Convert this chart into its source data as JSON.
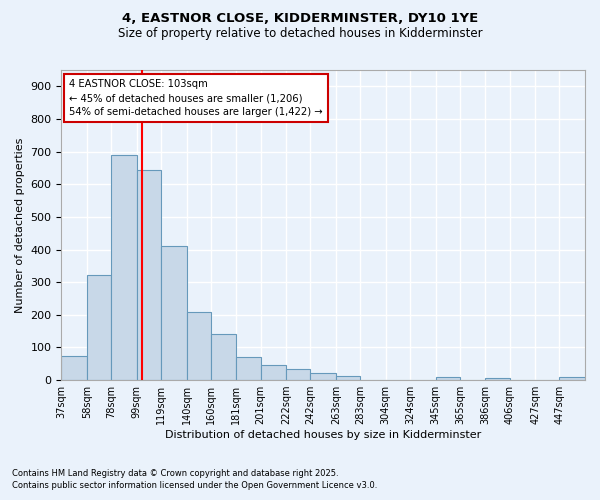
{
  "title_line1": "4, EASTNOR CLOSE, KIDDERMINSTER, DY10 1YE",
  "title_line2": "Size of property relative to detached houses in Kidderminster",
  "xlabel": "Distribution of detached houses by size in Kidderminster",
  "ylabel": "Number of detached properties",
  "bar_labels": [
    "37sqm",
    "58sqm",
    "78sqm",
    "99sqm",
    "119sqm",
    "140sqm",
    "160sqm",
    "181sqm",
    "201sqm",
    "222sqm",
    "242sqm",
    "263sqm",
    "283sqm",
    "304sqm",
    "324sqm",
    "345sqm",
    "365sqm",
    "386sqm",
    "406sqm",
    "427sqm",
    "447sqm"
  ],
  "bar_values": [
    75,
    323,
    690,
    645,
    412,
    210,
    140,
    72,
    47,
    35,
    22,
    12,
    0,
    0,
    0,
    9,
    0,
    6,
    0,
    0,
    8
  ],
  "bar_color": "#c8d8e8",
  "bar_edgecolor": "#6699bb",
  "background_color": "#eaf2fb",
  "grid_color": "#ffffff",
  "redline_x": 103,
  "bin_edges": [
    37,
    58,
    78,
    99,
    119,
    140,
    160,
    181,
    201,
    222,
    242,
    263,
    283,
    304,
    324,
    345,
    365,
    386,
    406,
    427,
    447,
    468
  ],
  "annotation_text": "4 EASTNOR CLOSE: 103sqm\n← 45% of detached houses are smaller (1,206)\n54% of semi-detached houses are larger (1,422) →",
  "annotation_box_color": "#ffffff",
  "annotation_box_edgecolor": "#cc0000",
  "footnote1": "Contains HM Land Registry data © Crown copyright and database right 2025.",
  "footnote2": "Contains public sector information licensed under the Open Government Licence v3.0.",
  "ylim": [
    0,
    950
  ],
  "yticks": [
    0,
    100,
    200,
    300,
    400,
    500,
    600,
    700,
    800,
    900
  ]
}
